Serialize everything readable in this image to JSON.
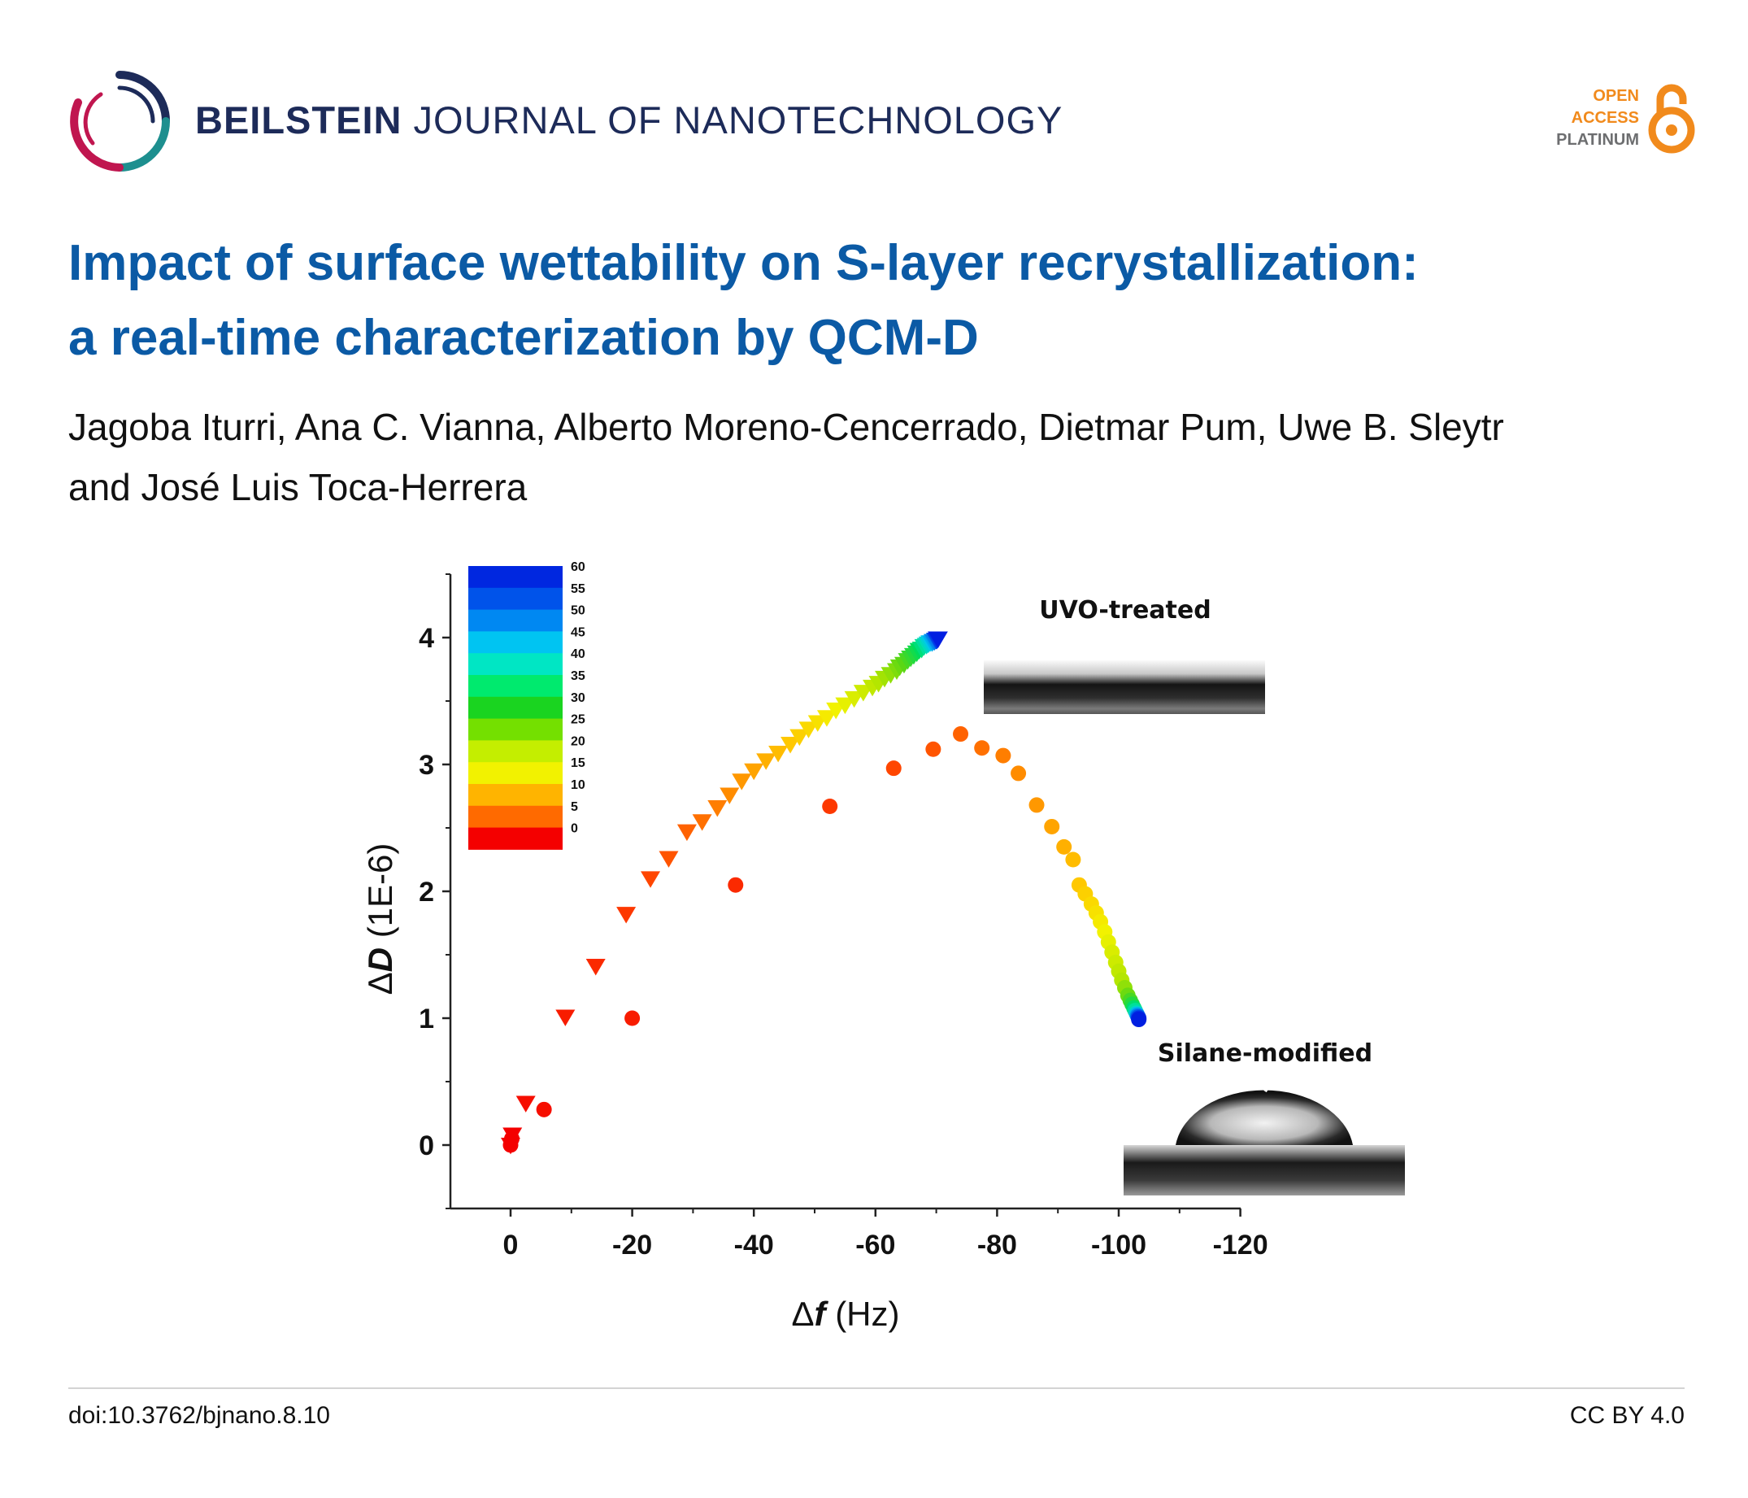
{
  "header": {
    "journal_bold": "BEILSTEIN",
    "journal_rest": "JOURNAL OF NANOTECHNOLOGY",
    "oa_line1": "OPEN",
    "oa_line2": "ACCESS",
    "oa_line3": "PLATINUM"
  },
  "article": {
    "title_line1": "Impact of surface wettability on S-layer recrystallization:",
    "title_line2": "a real-time characterization by QCM-D",
    "authors_line1": "Jagoba Iturri, Ana C. Vianna, Alberto Moreno-Cencerrado, Dietmar Pum, Uwe B. Sleytr",
    "authors_line2": "and José Luis Toca-Herrera"
  },
  "footer": {
    "doi": "doi:10.3762/bjnano.8.10",
    "license": "CC BY 4.0"
  },
  "colors": {
    "title": "#0b5aa5",
    "journal": "#1d2b59",
    "oa_orange": "#f18a1c",
    "oa_gray": "#6d6e70"
  },
  "chart_data": {
    "type": "scatter",
    "xlabel_symbol": "Δ",
    "xlabel_var": "f",
    "xlabel_unit": " (Hz)",
    "ylabel_symbol": "Δ",
    "ylabel_var": "D",
    "ylabel_unit": " (1E-6)",
    "xlim": [
      10,
      -120
    ],
    "ylim": [
      -0.5,
      4.5
    ],
    "xticks": [
      0,
      -20,
      -40,
      -60,
      -80,
      -100,
      -120
    ],
    "yticks": [
      0,
      1,
      2,
      3,
      4
    ],
    "colorbar": {
      "ticks": [
        60,
        55,
        50,
        45,
        40,
        35,
        30,
        25,
        20,
        15,
        10,
        5,
        0
      ],
      "colors": [
        "#0027e0",
        "#0053ea",
        "#0088f2",
        "#00c4f2",
        "#00e6c4",
        "#00ea6e",
        "#1ad420",
        "#74e000",
        "#c4ee00",
        "#f2f200",
        "#ffb400",
        "#ff6a00",
        "#f40000"
      ]
    },
    "insets": [
      {
        "label": "UVO-treated"
      },
      {
        "label": "Silane-modified"
      }
    ],
    "series": [
      {
        "marker": "triangle",
        "points": [
          [
            0,
            0.0,
            0
          ],
          [
            -0.3,
            0.08,
            0
          ],
          [
            -2.5,
            0.33,
            1
          ],
          [
            -9,
            1.01,
            2
          ],
          [
            -14,
            1.41,
            3
          ],
          [
            -19,
            1.82,
            4
          ],
          [
            -23,
            2.1,
            5
          ],
          [
            -26,
            2.26,
            6
          ],
          [
            -29,
            2.47,
            7
          ],
          [
            -31.5,
            2.55,
            8
          ],
          [
            -34,
            2.66,
            9
          ],
          [
            -36,
            2.76,
            10
          ],
          [
            -38,
            2.87,
            11
          ],
          [
            -40,
            2.95,
            12
          ],
          [
            -42,
            3.03,
            13
          ],
          [
            -44,
            3.09,
            14
          ],
          [
            -46,
            3.16,
            15
          ],
          [
            -47.5,
            3.22,
            16
          ],
          [
            -49,
            3.28,
            17
          ],
          [
            -50.5,
            3.33,
            18
          ],
          [
            -52,
            3.37,
            19
          ],
          [
            -53.5,
            3.43,
            20
          ],
          [
            -55,
            3.47,
            21
          ],
          [
            -56.5,
            3.52,
            22
          ],
          [
            -58,
            3.57,
            23
          ],
          [
            -59.5,
            3.61,
            24
          ],
          [
            -60.5,
            3.64,
            25
          ],
          [
            -61.5,
            3.68,
            26
          ],
          [
            -62.5,
            3.71,
            27
          ],
          [
            -63.5,
            3.74,
            28
          ],
          [
            -64,
            3.77,
            29
          ],
          [
            -64.7,
            3.79,
            30
          ],
          [
            -65.3,
            3.82,
            31
          ],
          [
            -65.8,
            3.84,
            32
          ],
          [
            -66.3,
            3.86,
            33
          ],
          [
            -66.8,
            3.88,
            34
          ],
          [
            -67.2,
            3.9,
            35
          ],
          [
            -67.6,
            3.91,
            37
          ],
          [
            -68,
            3.93,
            39
          ],
          [
            -68.4,
            3.94,
            41
          ],
          [
            -68.7,
            3.95,
            43
          ],
          [
            -69,
            3.96,
            45
          ],
          [
            -69.3,
            3.96,
            47
          ],
          [
            -69.5,
            3.97,
            49
          ],
          [
            -69.7,
            3.97,
            51
          ],
          [
            -69.9,
            3.98,
            53
          ],
          [
            -70,
            3.98,
            55
          ],
          [
            -70.1,
            3.98,
            57
          ],
          [
            -70.2,
            3.99,
            59
          ],
          [
            -70.3,
            3.99,
            60
          ]
        ]
      },
      {
        "marker": "circle",
        "points": [
          [
            0,
            0.0,
            0
          ],
          [
            -0.2,
            0.05,
            0
          ],
          [
            -5.5,
            0.28,
            1
          ],
          [
            -20,
            1.0,
            2
          ],
          [
            -37,
            2.05,
            3
          ],
          [
            -52.5,
            2.67,
            4
          ],
          [
            -63,
            2.97,
            5
          ],
          [
            -69.5,
            3.12,
            6
          ],
          [
            -74,
            3.24,
            7
          ],
          [
            -77.5,
            3.13,
            8
          ],
          [
            -81,
            3.07,
            9
          ],
          [
            -83.5,
            2.93,
            10
          ],
          [
            -86.5,
            2.68,
            11
          ],
          [
            -89,
            2.51,
            12
          ],
          [
            -91,
            2.35,
            13
          ],
          [
            -92.5,
            2.25,
            14
          ],
          [
            -93.5,
            2.05,
            15
          ],
          [
            -94.5,
            1.98,
            16
          ],
          [
            -95.5,
            1.9,
            17
          ],
          [
            -96.3,
            1.83,
            18
          ],
          [
            -97,
            1.76,
            19
          ],
          [
            -97.7,
            1.68,
            20
          ],
          [
            -98.3,
            1.6,
            21
          ],
          [
            -98.9,
            1.52,
            22
          ],
          [
            -99.5,
            1.44,
            23
          ],
          [
            -100,
            1.37,
            24
          ],
          [
            -100.5,
            1.3,
            25
          ],
          [
            -101,
            1.24,
            27
          ],
          [
            -101.5,
            1.18,
            29
          ],
          [
            -101.9,
            1.14,
            31
          ],
          [
            -102.2,
            1.11,
            33
          ],
          [
            -102.5,
            1.08,
            36
          ],
          [
            -102.7,
            1.06,
            39
          ],
          [
            -102.9,
            1.04,
            42
          ],
          [
            -103,
            1.03,
            46
          ],
          [
            -103.1,
            1.02,
            50
          ],
          [
            -103.2,
            1.01,
            54
          ],
          [
            -103.3,
            1.0,
            58
          ],
          [
            -103.3,
            0.99,
            60
          ]
        ]
      }
    ]
  }
}
